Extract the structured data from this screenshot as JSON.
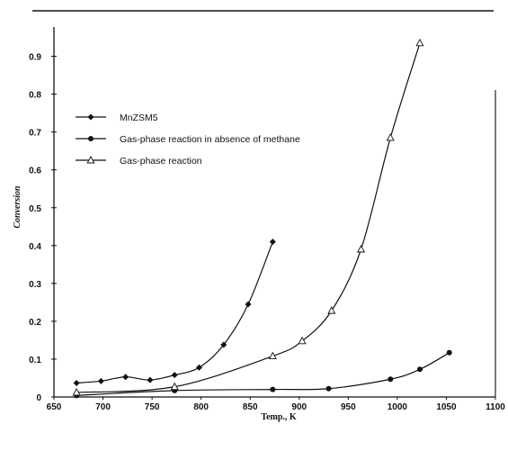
{
  "chart_data": {
    "type": "line",
    "title": "",
    "xlabel": "Temp., K",
    "ylabel": "Conversion",
    "xlim": [
      650,
      1100
    ],
    "ylim": [
      0,
      0.95
    ],
    "x_ticks": [
      "650",
      "700",
      "750",
      "800",
      "850",
      "900",
      "950",
      "1000",
      "1050",
      "1100"
    ],
    "y_ticks": [
      "0",
      "0.1",
      "0.2",
      "0.3",
      "0.4",
      "0.5",
      "0.6",
      "0.7",
      "0.8",
      "0.9"
    ],
    "grid": false,
    "legend_position": "upper-left",
    "series": [
      {
        "name": "MnZSM5",
        "marker": "diamond",
        "x": [
          673,
          698,
          723,
          748,
          773,
          798,
          823,
          848,
          873
        ],
        "y": [
          0.037,
          0.042,
          0.053,
          0.045,
          0.058,
          0.078,
          0.138,
          0.245,
          0.41
        ]
      },
      {
        "name": "Gas-phase reaction in absence of methane",
        "marker": "circle",
        "x": [
          673,
          773,
          873,
          930,
          993,
          1023,
          1053
        ],
        "y": [
          0.004,
          0.017,
          0.02,
          0.022,
          0.047,
          0.073,
          0.117
        ]
      },
      {
        "name": "Gas-phase reaction",
        "marker": "triangle",
        "x": [
          673,
          773,
          873,
          903,
          933,
          963,
          993,
          1023
        ],
        "y": [
          0.012,
          0.027,
          0.108,
          0.148,
          0.228,
          0.39,
          0.685,
          0.935
        ]
      }
    ]
  }
}
